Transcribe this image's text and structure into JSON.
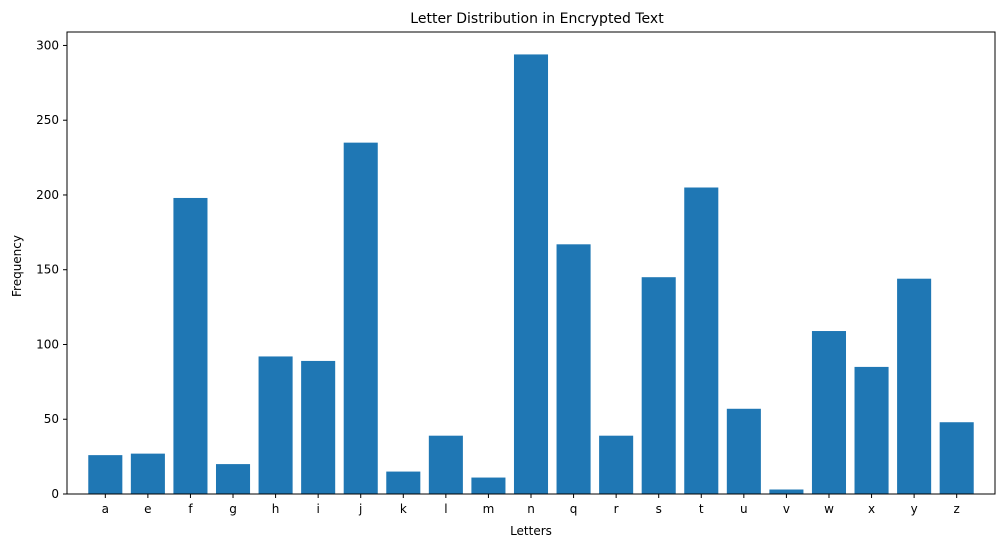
{
  "chart_data": {
    "type": "bar",
    "title": "Letter Distribution in Encrypted Text",
    "xlabel": "Letters",
    "ylabel": "Frequency",
    "categories": [
      "a",
      "e",
      "f",
      "g",
      "h",
      "i",
      "j",
      "k",
      "l",
      "m",
      "n",
      "q",
      "r",
      "s",
      "t",
      "u",
      "v",
      "w",
      "x",
      "y",
      "z"
    ],
    "values": [
      26,
      27,
      198,
      20,
      92,
      89,
      235,
      15,
      39,
      11,
      294,
      167,
      39,
      145,
      205,
      57,
      3,
      109,
      85,
      144,
      48
    ],
    "ylim": [
      0,
      309
    ],
    "yticks": [
      0,
      50,
      100,
      150,
      200,
      250,
      300
    ],
    "grid": false,
    "legend": "none",
    "bar_color": "#1f77b4"
  }
}
